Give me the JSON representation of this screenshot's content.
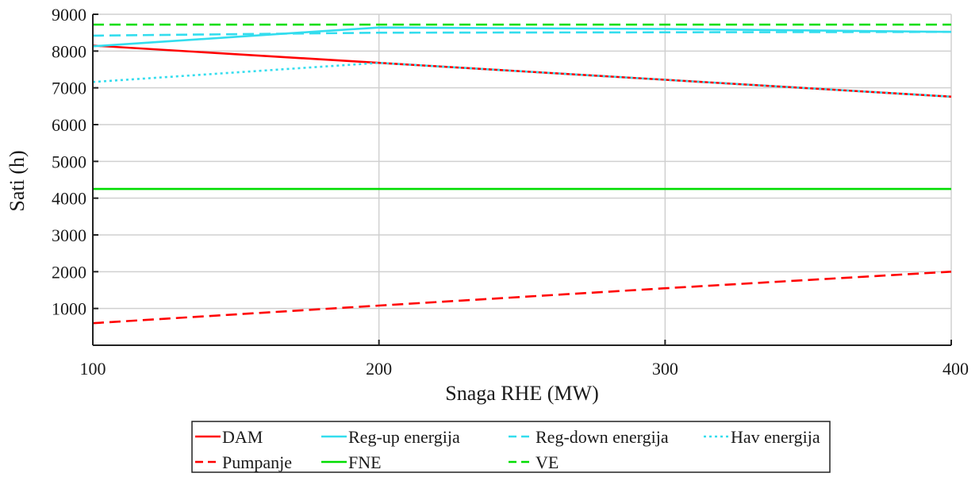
{
  "chart_data": {
    "type": "line",
    "xlabel": "Snaga RHE (MW)",
    "ylabel": "Sati (h)",
    "xlim": [
      100,
      400
    ],
    "ylim": [
      0,
      9000
    ],
    "x_ticks": [
      100,
      200,
      300,
      400
    ],
    "y_ticks": [
      1000,
      2000,
      3000,
      4000,
      5000,
      6000,
      7000,
      8000,
      9000
    ],
    "grid": true,
    "legend_position": "bottom",
    "series": [
      {
        "name": "DAM",
        "color": "#ff0000",
        "dash": "solid",
        "x": [
          100,
          200,
          300,
          400
        ],
        "y": [
          8150,
          7680,
          7220,
          6760
        ]
      },
      {
        "name": "Reg-up energija",
        "color": "#33ddee",
        "dash": "solid",
        "x": [
          100,
          180,
          200,
          300,
          400
        ],
        "y": [
          8130,
          8540,
          8640,
          8600,
          8520
        ]
      },
      {
        "name": "Reg-down energija",
        "color": "#33ddee",
        "dash": "dashed",
        "x": [
          100,
          200,
          300,
          400
        ],
        "y": [
          8420,
          8500,
          8510,
          8520
        ]
      },
      {
        "name": "Hav energija",
        "color": "#33ddee",
        "dash": "dotted",
        "x": [
          100,
          200,
          300,
          400
        ],
        "y": [
          7160,
          7680,
          7220,
          6760
        ]
      },
      {
        "name": "Pumpanje",
        "color": "#ff0000",
        "dash": "dashed",
        "x": [
          100,
          200,
          300,
          400
        ],
        "y": [
          600,
          1080,
          1550,
          2000
        ]
      },
      {
        "name": "FNE",
        "color": "#00dd00",
        "dash": "solid",
        "x": [
          100,
          400
        ],
        "y": [
          4250,
          4250
        ]
      },
      {
        "name": "VE",
        "color": "#00dd00",
        "dash": "dashed",
        "x": [
          100,
          400
        ],
        "y": [
          8720,
          8720
        ]
      }
    ]
  }
}
